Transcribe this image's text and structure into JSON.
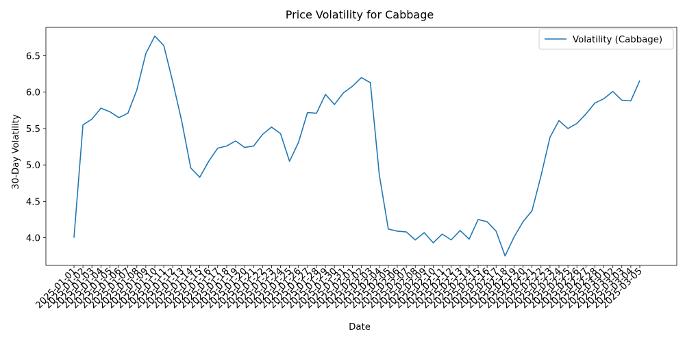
{
  "chart_data": {
    "type": "line",
    "title": "Price Volatility for Cabbage",
    "xlabel": "Date",
    "ylabel": "30-Day Volatility",
    "ylim": [
      3.62,
      6.89
    ],
    "yticks": [
      "4.0",
      "4.5",
      "5.0",
      "5.5",
      "6.0",
      "6.5"
    ],
    "grid": false,
    "legend_position": "top-right",
    "line_color": "#1f77b4",
    "x": [
      "2025-01-01",
      "2025-01-02",
      "2025-01-03",
      "2025-01-04",
      "2025-01-05",
      "2025-01-06",
      "2025-01-07",
      "2025-01-08",
      "2025-01-09",
      "2025-01-10",
      "2025-01-11",
      "2025-01-12",
      "2025-01-13",
      "2025-01-14",
      "2025-01-15",
      "2025-01-16",
      "2025-01-17",
      "2025-01-18",
      "2025-01-19",
      "2025-01-20",
      "2025-01-21",
      "2025-01-22",
      "2025-01-23",
      "2025-01-24",
      "2025-01-25",
      "2025-01-26",
      "2025-01-27",
      "2025-01-28",
      "2025-01-29",
      "2025-01-30",
      "2025-01-31",
      "2025-02-01",
      "2025-02-02",
      "2025-02-03",
      "2025-02-04",
      "2025-02-05",
      "2025-02-06",
      "2025-02-07",
      "2025-02-08",
      "2025-02-09",
      "2025-02-10",
      "2025-02-11",
      "2025-02-12",
      "2025-02-13",
      "2025-02-14",
      "2025-02-15",
      "2025-02-16",
      "2025-02-17",
      "2025-02-18",
      "2025-02-19",
      "2025-02-20",
      "2025-02-21",
      "2025-02-22",
      "2025-02-23",
      "2025-02-24",
      "2025-02-25",
      "2025-02-26",
      "2025-02-27",
      "2025-02-28",
      "2025-03-01",
      "2025-03-02",
      "2025-03-03",
      "2025-03-04",
      "2025-03-05"
    ],
    "series": [
      {
        "name": "Volatility (Cabbage)",
        "values": [
          4.0,
          5.55,
          5.63,
          5.78,
          5.73,
          5.65,
          5.71,
          6.03,
          6.53,
          6.77,
          6.64,
          6.14,
          5.6,
          4.96,
          4.83,
          5.05,
          5.23,
          5.26,
          5.33,
          5.24,
          5.26,
          5.42,
          5.52,
          5.43,
          5.05,
          5.31,
          5.72,
          5.71,
          5.97,
          5.83,
          5.99,
          6.08,
          6.2,
          6.13,
          4.86,
          4.12,
          4.09,
          4.08,
          3.97,
          4.07,
          3.93,
          4.05,
          3.97,
          4.1,
          3.98,
          4.25,
          4.22,
          4.09,
          3.75,
          4.01,
          4.22,
          4.37,
          4.85,
          5.38,
          5.61,
          5.5,
          5.57,
          5.7,
          5.85,
          5.91,
          6.01,
          5.89,
          5.88,
          6.16
        ]
      }
    ]
  }
}
